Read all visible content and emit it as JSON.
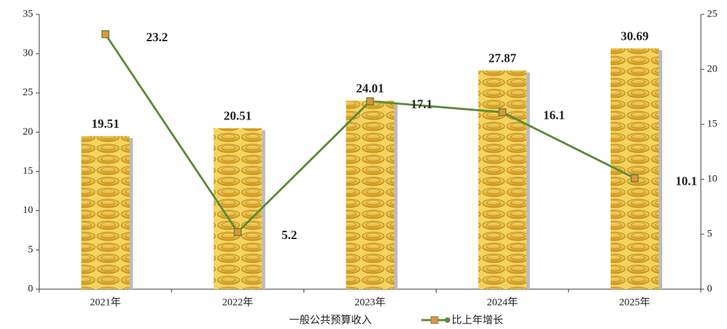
{
  "chart_data": {
    "type": "bar",
    "categories": [
      "2021年",
      "2022年",
      "2023年",
      "2024年",
      "2025年"
    ],
    "series": [
      {
        "name": "一般公共预算收入",
        "type": "bar",
        "color": "#e8b52e",
        "values": [
          19.51,
          20.51,
          24.01,
          27.87,
          30.69
        ]
      },
      {
        "name": "比上年增长",
        "type": "line",
        "axis": "y2",
        "color": "#5b8a3a",
        "marker_color": "#e8913a",
        "values": [
          23.2,
          5.2,
          17.1,
          16.1,
          10.1
        ]
      }
    ],
    "ylim": [
      0,
      35
    ],
    "yticks": [
      0,
      5,
      10,
      15,
      20,
      25,
      30,
      35
    ],
    "y2lim": [
      0,
      25
    ],
    "y2ticks": [
      0,
      5,
      10,
      15,
      20,
      25
    ],
    "legend": "bottom"
  }
}
